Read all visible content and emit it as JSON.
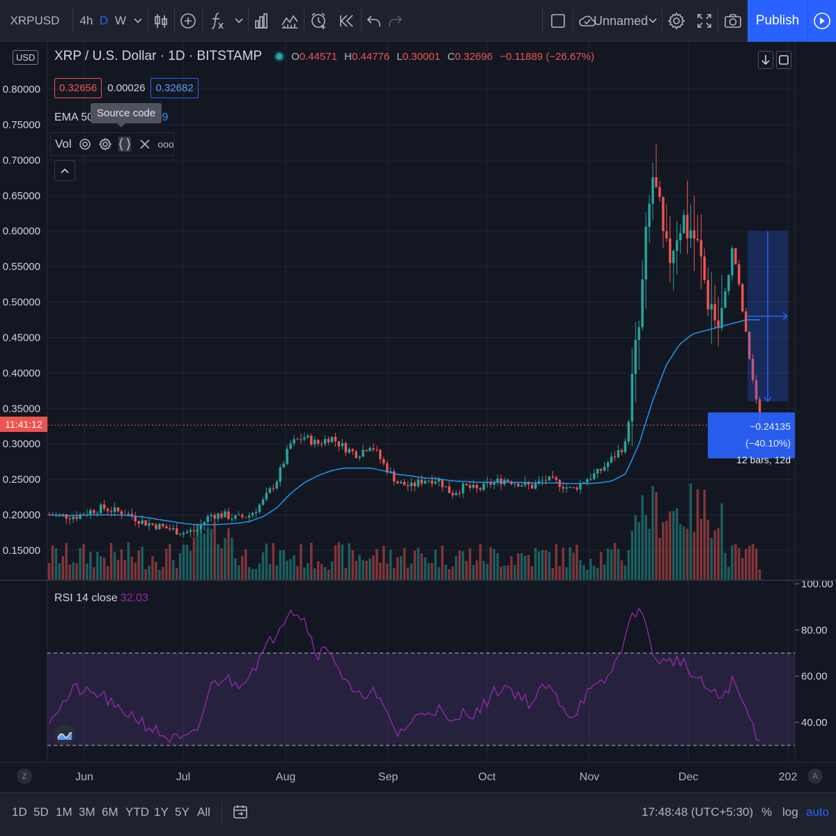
{
  "toolbar": {
    "symbol": "XRPUSD",
    "intervals": [
      "4h",
      "D",
      "W"
    ],
    "active_interval": "D",
    "layout_name": "Unnamed",
    "publish_label": "Publish"
  },
  "legend": {
    "title": "XRP / U.S. Dollar · 1D · BITSTAMP",
    "open_label": "O",
    "open": "0.44571",
    "high_label": "H",
    "high": "0.44776",
    "low_label": "L",
    "low": "0.30001",
    "close_label": "C",
    "close": "0.32696",
    "change": "−0.11889 (−26.67%)"
  },
  "price_boxes": {
    "bid": "0.32656",
    "spread": "0.00026",
    "ask": "0.32682"
  },
  "indicators": {
    "ema_label": "EMA 50 c",
    "ema_value_tail": "9",
    "tooltip": "Source code",
    "vol_label": "Vol",
    "more": "ooo"
  },
  "price_axis": {
    "currency": "USD",
    "labels": [
      "0.80000",
      "0.75000",
      "0.70000",
      "0.65000",
      "0.60000",
      "0.55000",
      "0.50000",
      "0.45000",
      "0.40000",
      "0.35000",
      "0.30000",
      "0.25000",
      "0.20000",
      "0.15000"
    ],
    "countdown": "11:41:12"
  },
  "measure": {
    "change": "−0.24135 (−40.10%)",
    "bars": "12 bars, 12d"
  },
  "rsi": {
    "label": "RSI 14 close",
    "value": "32.03",
    "axis_labels": [
      "100.00",
      "80.00",
      "60.00",
      "40.00"
    ]
  },
  "time_axis": {
    "labels": [
      "Jun",
      "Jul",
      "Aug",
      "Sep",
      "Oct",
      "Nov",
      "Dec",
      "202"
    ],
    "left_btn": "Z",
    "right_btn": "A"
  },
  "bottombar": {
    "ranges": [
      "1D",
      "5D",
      "1M",
      "3M",
      "6M",
      "YTD",
      "1Y",
      "5Y",
      "All"
    ],
    "clock": "17:48:48 (UTC+5:30)",
    "percent": "%",
    "log": "log",
    "auto": "auto"
  },
  "colors": {
    "up": "#26a69a",
    "down": "#ef5350",
    "ema": "#2196f3",
    "rsi": "#9c27b0",
    "accent": "#2962ff"
  },
  "chart_data": {
    "type": "candlestick",
    "series_note": "XRP / U.S. Dollar daily candles with EMA 50 and Volume, RSI 14 sub-pane",
    "x_labels": [
      "Jun",
      "Jul",
      "Aug",
      "Sep",
      "Oct",
      "Nov",
      "Dec"
    ],
    "y_axis_range": [
      0.1,
      0.8
    ],
    "rsi_range": [
      25,
      100
    ],
    "rsi_bands": [
      70,
      30
    ],
    "close": [
      0.2,
      0.199,
      0.198,
      0.205,
      0.21,
      0.205,
      0.2,
      0.19,
      0.185,
      0.18,
      0.175,
      0.178,
      0.2,
      0.2,
      0.195,
      0.2,
      0.22,
      0.25,
      0.3,
      0.31,
      0.3,
      0.31,
      0.295,
      0.285,
      0.3,
      0.27,
      0.245,
      0.24,
      0.25,
      0.25,
      0.23,
      0.24,
      0.235,
      0.245,
      0.25,
      0.245,
      0.24,
      0.25,
      0.245,
      0.235,
      0.25,
      0.26,
      0.28,
      0.3,
      0.46,
      0.68,
      0.55,
      0.62,
      0.6,
      0.52,
      0.46,
      0.58,
      0.45,
      0.327
    ],
    "ema50": [
      0.2,
      0.199,
      0.199,
      0.2,
      0.2,
      0.2,
      0.199,
      0.197,
      0.194,
      0.191,
      0.188,
      0.186,
      0.186,
      0.187,
      0.188,
      0.191,
      0.198,
      0.21,
      0.23,
      0.245,
      0.255,
      0.262,
      0.266,
      0.266,
      0.266,
      0.262,
      0.257,
      0.255,
      0.252,
      0.251,
      0.248,
      0.247,
      0.246,
      0.246,
      0.246,
      0.246,
      0.245,
      0.245,
      0.245,
      0.244,
      0.244,
      0.245,
      0.248,
      0.258,
      0.3,
      0.36,
      0.41,
      0.44,
      0.455,
      0.46,
      0.465,
      0.47,
      0.475,
      0.475
    ],
    "rsi14": [
      42,
      48,
      55,
      52,
      52,
      45,
      44,
      40,
      36,
      33,
      32,
      35,
      55,
      60,
      56,
      62,
      70,
      80,
      90,
      85,
      70,
      72,
      58,
      50,
      55,
      45,
      35,
      40,
      45,
      46,
      38,
      45,
      44,
      52,
      56,
      52,
      48,
      56,
      50,
      42,
      52,
      55,
      62,
      78,
      92,
      70,
      65,
      68,
      60,
      55,
      50,
      58,
      45,
      32
    ]
  }
}
